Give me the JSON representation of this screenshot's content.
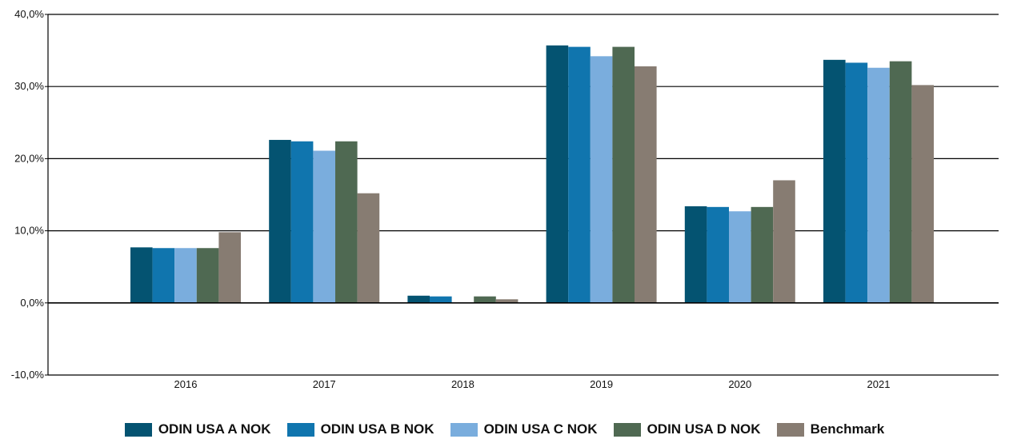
{
  "chart_data": {
    "type": "bar",
    "categories": [
      "2016",
      "2017",
      "2018",
      "2019",
      "2020",
      "2021"
    ],
    "series": [
      {
        "name": "ODIN USA A NOK",
        "color": "#045371",
        "values": [
          7.7,
          22.6,
          1.0,
          35.7,
          13.4,
          33.7
        ]
      },
      {
        "name": "ODIN USA B NOK",
        "color": "#1075AE",
        "values": [
          7.6,
          22.4,
          0.9,
          35.5,
          13.3,
          33.3
        ]
      },
      {
        "name": "ODIN USA C NOK",
        "color": "#7AADDD",
        "values": [
          7.6,
          21.1,
          0.0,
          34.2,
          12.7,
          32.6
        ]
      },
      {
        "name": "ODIN USA D NOK",
        "color": "#4F6952",
        "values": [
          7.6,
          22.4,
          0.9,
          35.5,
          13.3,
          33.5
        ]
      },
      {
        "name": "Benchmark",
        "color": "#877C72",
        "values": [
          9.8,
          15.2,
          0.5,
          32.8,
          17.0,
          30.2
        ]
      }
    ],
    "ylim": [
      -10,
      40
    ],
    "yticks": [
      -10,
      0,
      10,
      20,
      30,
      40
    ],
    "ytick_labels": [
      "-10,0%",
      "0,0%",
      "10,0%",
      "20,0%",
      "30,0%",
      "40,0%"
    ],
    "grid": true,
    "legend_position": "bottom",
    "title": "",
    "xlabel": "",
    "ylabel": ""
  }
}
